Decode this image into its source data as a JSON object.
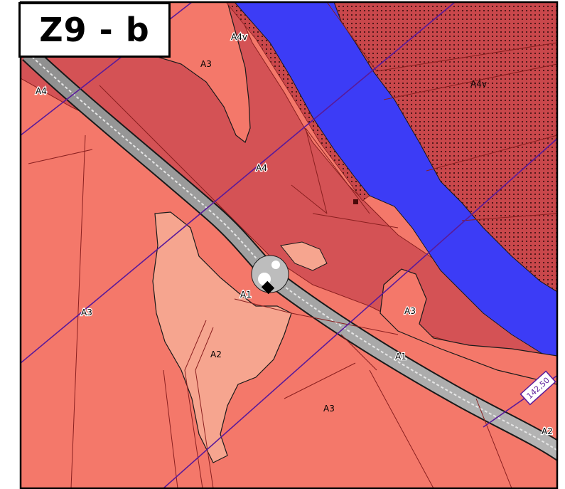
{
  "title": "Z9 - b",
  "profile_label": "142,50",
  "zone_labels": [
    {
      "id": "a4v-top",
      "text": "A4v"
    },
    {
      "id": "a4v-right",
      "text": "A4v"
    },
    {
      "id": "a3-top",
      "text": "A3"
    },
    {
      "id": "a4-left",
      "text": "A4"
    },
    {
      "id": "a4-center",
      "text": "A4"
    },
    {
      "id": "a3-left",
      "text": "A3"
    },
    {
      "id": "a1-center",
      "text": "A1"
    },
    {
      "id": "a3-right",
      "text": "A3"
    },
    {
      "id": "a2-center",
      "text": "A2"
    },
    {
      "id": "a1-road",
      "text": "A1"
    },
    {
      "id": "a3-bottom",
      "text": "A3"
    },
    {
      "id": "a2-right",
      "text": "A2"
    }
  ],
  "colors": {
    "zone_a1_road": "#9a9a9a",
    "zone_a2": "#f6a58f",
    "zone_a3": "#f4786a",
    "zone_a4": "#d45255",
    "zone_a4v": "#c9474b",
    "river": "#3c3cf6",
    "cross_section_lines": "#5a1a9a",
    "boundaries": "#8a1f1f"
  }
}
